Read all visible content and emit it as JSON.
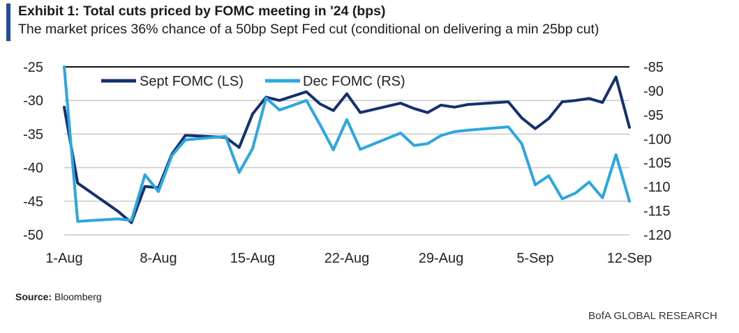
{
  "header": {
    "title": "Exhibit 1: Total cuts priced by FOMC meeting in '24 (bps)",
    "subtitle": "The market prices 36% chance of a 50bp Sept Fed cut (conditional on delivering a min 25bp cut)"
  },
  "footer": {
    "source_label": "Source:",
    "source_value": "Bloomberg",
    "brand": "BofA GLOBAL RESEARCH"
  },
  "colors": {
    "sept": "#14306e",
    "dec": "#2aa7e0",
    "accent": "#1f4e9c",
    "grid": "#c8c8c8"
  },
  "chart_data": {
    "type": "line",
    "title": "Exhibit 1: Total cuts priced by FOMC meeting in '24 (bps)",
    "x_tick_labels": [
      "1-Aug",
      "8-Aug",
      "15-Aug",
      "22-Aug",
      "29-Aug",
      "5-Sep",
      "12-Sep"
    ],
    "x_tick_days": [
      0,
      7,
      14,
      21,
      28,
      35,
      42
    ],
    "y_left_range": [
      -50,
      -25
    ],
    "y_left_ticks": [
      "-25",
      "-30",
      "-35",
      "-40",
      "-45",
      "-50"
    ],
    "y_right_range": [
      -120,
      -85
    ],
    "y_right_ticks": [
      "-85",
      "-90",
      "-95",
      "-100",
      "-105",
      "-110",
      "-115",
      "-120"
    ],
    "grid": "horizontal",
    "legend": "top-left",
    "series": [
      {
        "name": "Sept FOMC (LS)",
        "axis": "left",
        "x": [
          0,
          1,
          4,
          5,
          6,
          7,
          8,
          9,
          12,
          13,
          14,
          15,
          16,
          18,
          19,
          20,
          21,
          22,
          25,
          26,
          27,
          28,
          29,
          30,
          33,
          34,
          35,
          36,
          37,
          38,
          39,
          40,
          41,
          42
        ],
        "values": [
          -31,
          -42.3,
          -46.5,
          -48.2,
          -42.8,
          -43,
          -38,
          -35.2,
          -35.5,
          -37,
          -32,
          -29.5,
          -30,
          -28.7,
          -30.5,
          -31.5,
          -29,
          -31.8,
          -30.4,
          -31.2,
          -31.8,
          -30.7,
          -31,
          -30.6,
          -30.2,
          -32.6,
          -34.2,
          -32.7,
          -30.2,
          -30,
          -29.7,
          -30.3,
          -26.5,
          -34
        ]
      },
      {
        "name": "Dec FOMC (RS)",
        "axis": "right",
        "x": [
          0,
          1,
          4,
          5,
          6,
          7,
          8,
          9,
          12,
          13,
          14,
          15,
          16,
          18,
          19,
          20,
          21,
          22,
          25,
          26,
          27,
          28,
          29,
          30,
          33,
          34,
          35,
          36,
          37,
          38,
          39,
          40,
          41,
          42
        ],
        "values": [
          -85,
          -117.2,
          -116.7,
          -117,
          -107.5,
          -111,
          -103.5,
          -100.2,
          -99.5,
          -107,
          -102,
          -91.5,
          -94,
          -92,
          -97,
          -102.3,
          -96,
          -102.2,
          -98.8,
          -101.4,
          -101,
          -99.3,
          -98.5,
          -98.2,
          -97.5,
          -101,
          -109.6,
          -107.7,
          -112.5,
          -111.3,
          -109,
          -112.3,
          -103.3,
          -113
        ]
      }
    ]
  }
}
